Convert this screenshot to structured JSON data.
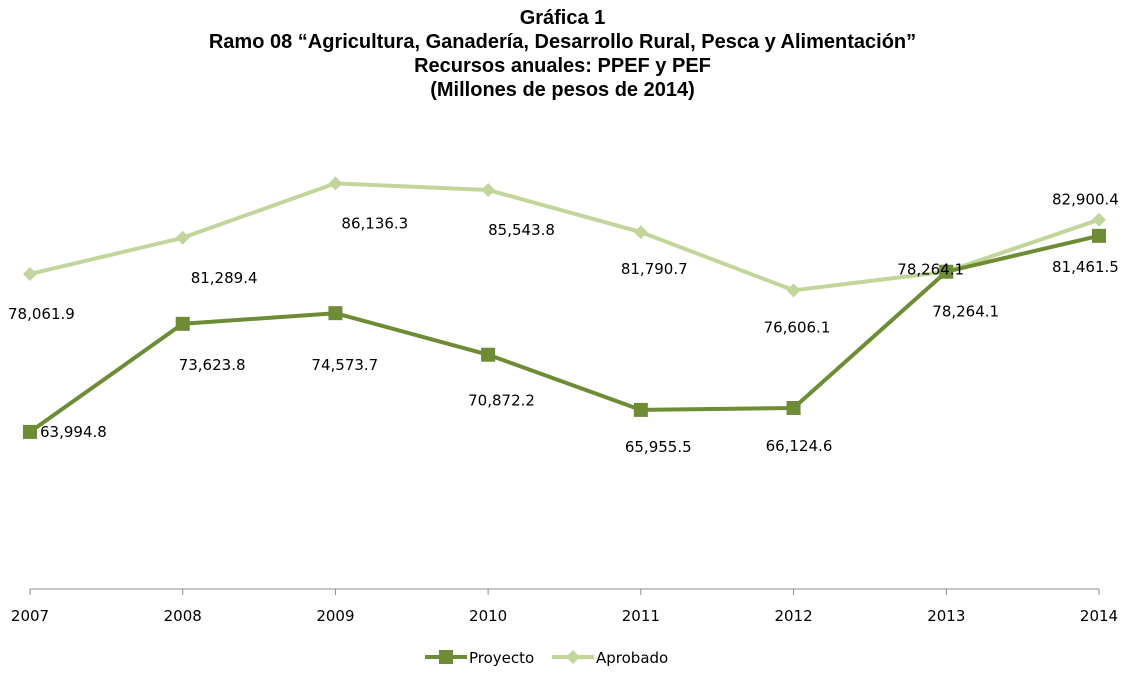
{
  "chart_data": {
    "type": "line",
    "title_lines": [
      "Gráfica 1",
      "Ramo 08 “Agricultura,  Ganadería,  Desarrollo Rural, Pesca y Alimentación”",
      "Recursos anuales:  PPEF y PEF",
      "(Millones de pesos de 2014)"
    ],
    "categories": [
      "2007",
      "2008",
      "2009",
      "2010",
      "2011",
      "2012",
      "2013",
      "2014"
    ],
    "series": [
      {
        "name": "Proyecto",
        "color": "#6e8b35",
        "marker": "square",
        "values": [
          63994.8,
          73623.8,
          74573.7,
          70872.2,
          65955.5,
          66124.6,
          78264.1,
          81461.5
        ],
        "labels": [
          "63,994.8",
          "73,623.8",
          "74,573.7",
          "70,872.2",
          "65,955.5",
          "66,124.6",
          "78,264.1",
          "81,461.5"
        ]
      },
      {
        "name": "Aprobado",
        "color": "#c2d69b",
        "marker": "diamond",
        "values": [
          78061.9,
          81289.4,
          86136.3,
          85543.8,
          81790.7,
          76606.1,
          78264.1,
          82900.4
        ],
        "labels": [
          "78,061.9",
          "81,289.4",
          "86,136.3",
          "85,543.8",
          "81,790.7",
          "76,606.1",
          "78,264.1",
          "82,900.4"
        ]
      }
    ],
    "ylim": [
      50000,
      90000
    ],
    "grid": false,
    "legend": "bottom"
  }
}
